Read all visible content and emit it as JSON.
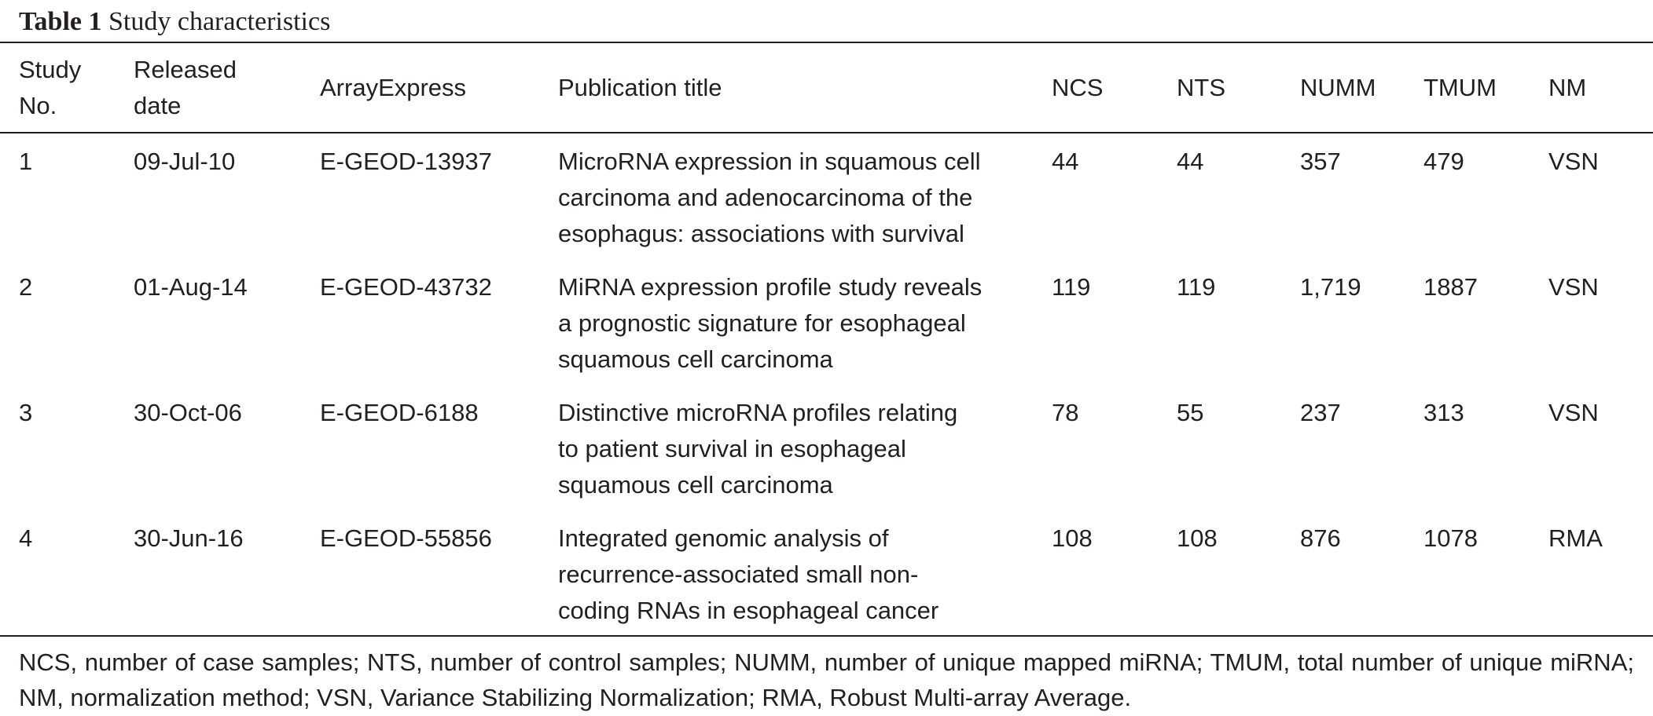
{
  "caption": {
    "label": "Table 1",
    "title": "Study characteristics"
  },
  "table": {
    "headers": {
      "study": [
        "Study",
        "No."
      ],
      "released": [
        "Released",
        "date"
      ],
      "arrayexpress": "ArrayExpress",
      "publication": "Publication title",
      "ncs": "NCS",
      "nts": "NTS",
      "numm": "NUMM",
      "tmum": "TMUM",
      "nm": "NM"
    },
    "rows": [
      {
        "study": "1",
        "released": "09-Jul-10",
        "arrayexpress": "E-GEOD-13937",
        "title_lines": [
          "MicroRNA expression in squamous cell",
          "carcinoma and adenocarcinoma of the",
          "esophagus: associations with survival"
        ],
        "ncs": "44",
        "nts": "44",
        "numm": "357",
        "tmum": "479",
        "nm": "VSN"
      },
      {
        "study": "2",
        "released": "01-Aug-14",
        "arrayexpress": "E-GEOD-43732",
        "title_lines": [
          "MiRNA expression profile study reveals",
          "a prognostic signature for esophageal",
          "squamous cell carcinoma"
        ],
        "ncs": "119",
        "nts": "119",
        "numm": "1,719",
        "tmum": "1887",
        "nm": "VSN"
      },
      {
        "study": "3",
        "released": "30-Oct-06",
        "arrayexpress": "E-GEOD-6188",
        "title_lines": [
          "Distinctive microRNA profiles relating",
          "to patient survival in esophageal",
          "squamous cell carcinoma"
        ],
        "ncs": "78",
        "nts": "55",
        "numm": "237",
        "tmum": "313",
        "nm": "VSN"
      },
      {
        "study": "4",
        "released": "30-Jun-16",
        "arrayexpress": "E-GEOD-55856",
        "title_lines": [
          "Integrated genomic analysis of",
          "recurrence-associated small non-",
          "coding RNAs in esophageal cancer"
        ],
        "ncs": "108",
        "nts": "108",
        "numm": "876",
        "tmum": "1078",
        "nm": "RMA"
      }
    ]
  },
  "footnote": "NCS, number of case samples; NTS, number of control samples; NUMM, number of unique mapped miRNA; TMUM, total number of unique miRNA; NM, normalization method; VSN, Variance Stabilizing Normalization; RMA, Robust Multi-array Average."
}
